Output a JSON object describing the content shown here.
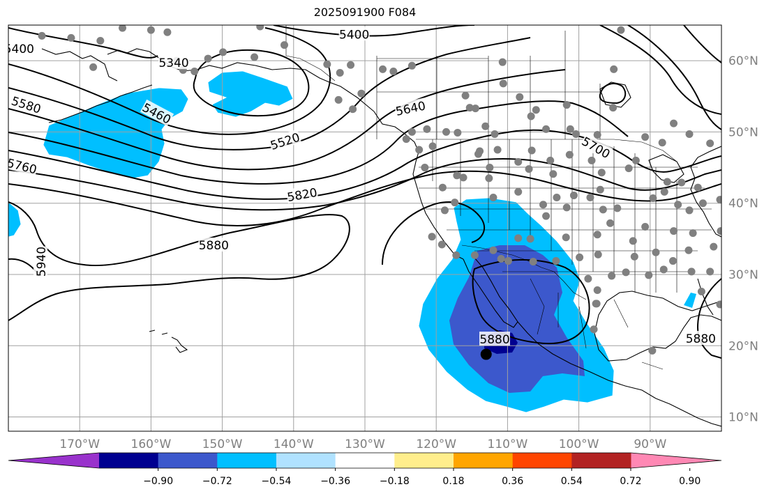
{
  "title": "2025091900 F084",
  "map": {
    "projection": "PlateCarree",
    "lon_range": [
      -180,
      -80
    ],
    "lat_range": [
      8,
      65
    ],
    "grid": true,
    "lon_ticks": [
      {
        "lon": -170,
        "label": "170°W"
      },
      {
        "lon": -160,
        "label": "160°W"
      },
      {
        "lon": -150,
        "label": "150°W"
      },
      {
        "lon": -140,
        "label": "140°W"
      },
      {
        "lon": -130,
        "label": "130°W"
      },
      {
        "lon": -120,
        "label": "120°W"
      },
      {
        "lon": -110,
        "label": "110°W"
      },
      {
        "lon": -100,
        "label": "100°W"
      },
      {
        "lon": -90,
        "label": "90°W"
      }
    ],
    "lat_ticks": [
      {
        "lat": 10,
        "label": "10°N"
      },
      {
        "lat": 20,
        "label": "20°N"
      },
      {
        "lat": 30,
        "label": "30°N"
      },
      {
        "lat": 40,
        "label": "40°N"
      },
      {
        "lat": 50,
        "label": "50°N"
      },
      {
        "lat": 60,
        "label": "60°N"
      }
    ],
    "contour_labels": [
      {
        "text": "5400",
        "lon": -178.5,
        "lat": 61.7
      },
      {
        "text": "5400",
        "lon": -131.5,
        "lat": 63.7
      },
      {
        "text": "5340",
        "lon": -156.8,
        "lat": 59.7
      },
      {
        "text": "5460",
        "lon": -159.2,
        "lat": 52.6
      },
      {
        "text": "5520",
        "lon": -141.2,
        "lat": 48.7
      },
      {
        "text": "5580",
        "lon": -177.5,
        "lat": 53.8
      },
      {
        "text": "5640",
        "lon": -123.6,
        "lat": 53.3
      },
      {
        "text": "5700",
        "lon": -97.6,
        "lat": 47.8
      },
      {
        "text": "5760",
        "lon": -178.1,
        "lat": 45.2
      },
      {
        "text": "5820",
        "lon": -138.8,
        "lat": 41.2
      },
      {
        "text": "5880",
        "lon": -151.2,
        "lat": 34.1
      },
      {
        "text": "5880",
        "lon": -111.8,
        "lat": 20.9
      },
      {
        "text": "5880",
        "lon": -82.9,
        "lat": 21.0
      },
      {
        "text": "5940",
        "lon": -175.4,
        "lat": 31.8
      }
    ],
    "center_marker": {
      "lon": -113.0,
      "lat": 18.8,
      "color": "#000000"
    },
    "station_dot_color": "#808080",
    "stations": [
      [
        -175.3,
        63.5
      ],
      [
        -171.2,
        63.2
      ],
      [
        -168.1,
        59.1
      ],
      [
        -167.1,
        62.8
      ],
      [
        -164.0,
        64.6
      ],
      [
        -160.0,
        64.3
      ],
      [
        -157.7,
        64.0
      ],
      [
        -156.4,
        60.0
      ],
      [
        -155.5,
        58.7
      ],
      [
        -153.9,
        58.5
      ],
      [
        -152.0,
        60.3
      ],
      [
        -149.9,
        61.2
      ],
      [
        -145.5,
        60.5
      ],
      [
        -141.3,
        62.2
      ],
      [
        -144.7,
        64.8
      ],
      [
        -135.3,
        59.5
      ],
      [
        -133.5,
        58.3
      ],
      [
        -132.0,
        59.4
      ],
      [
        -130.5,
        55.4
      ],
      [
        -133.7,
        54.5
      ],
      [
        -131.7,
        53.2
      ],
      [
        -127.5,
        58.8
      ],
      [
        -126.0,
        58.5
      ],
      [
        -123.4,
        59.3
      ],
      [
        -123.4,
        50.0
      ],
      [
        -122.4,
        47.5
      ],
      [
        -124.2,
        49.0
      ],
      [
        -121.3,
        50.4
      ],
      [
        -121.6,
        45.0
      ],
      [
        -120.5,
        48.0
      ],
      [
        -118.6,
        50.0
      ],
      [
        -117.0,
        49.9
      ],
      [
        -115.9,
        55.1
      ],
      [
        -115.3,
        53.4
      ],
      [
        -114.5,
        53.3
      ],
      [
        -113.1,
        50.8
      ],
      [
        -111.8,
        49.7
      ],
      [
        -113.9,
        47.3
      ],
      [
        -110.7,
        59.8
      ],
      [
        -110.6,
        56.8
      ],
      [
        -108.3,
        54.9
      ],
      [
        -106.7,
        52.2
      ],
      [
        -106.0,
        53.1
      ],
      [
        -104.6,
        50.4
      ],
      [
        -101.7,
        53.8
      ],
      [
        -101.2,
        50.4
      ],
      [
        -100.4,
        49.7
      ],
      [
        -97.4,
        49.6
      ],
      [
        -95.2,
        53.4
      ],
      [
        -95.1,
        58.8
      ],
      [
        -94.1,
        64.3
      ],
      [
        -90.7,
        49.3
      ],
      [
        -92.0,
        46.0
      ],
      [
        -88.3,
        48.5
      ],
      [
        -86.7,
        51.2
      ],
      [
        -84.5,
        49.7
      ],
      [
        -81.6,
        48.4
      ],
      [
        -78.3,
        52.2
      ],
      [
        -79.4,
        46.2
      ],
      [
        -77.9,
        64.5
      ],
      [
        -76.8,
        57.2
      ],
      [
        -75.5,
        51.4
      ],
      [
        -73.5,
        45.5
      ],
      [
        -73.2,
        40.9
      ],
      [
        -73.8,
        43.0
      ],
      [
        -76.6,
        44.3
      ],
      [
        -70.5,
        44.7
      ],
      [
        -75.3,
        39.9
      ],
      [
        -78.2,
        38.8
      ],
      [
        -80.1,
        36.1
      ],
      [
        -81.1,
        33.9
      ],
      [
        -84.6,
        33.4
      ],
      [
        -81.6,
        30.4
      ],
      [
        -82.8,
        27.6
      ],
      [
        -80.2,
        25.8
      ],
      [
        -84.2,
        30.4
      ],
      [
        -86.8,
        31.9
      ],
      [
        -88.1,
        30.7
      ],
      [
        -89.2,
        33.1
      ],
      [
        -92.2,
        32.5
      ],
      [
        -90.2,
        29.9
      ],
      [
        -93.4,
        30.3
      ],
      [
        -95.4,
        29.8
      ],
      [
        -97.4,
        27.8
      ],
      [
        -97.6,
        25.9
      ],
      [
        -98.7,
        29.4
      ],
      [
        -97.3,
        32.8
      ],
      [
        -99.9,
        32.4
      ],
      [
        -101.8,
        35.2
      ],
      [
        -103.2,
        31.9
      ],
      [
        -106.4,
        31.8
      ],
      [
        -109.9,
        31.9
      ],
      [
        -110.9,
        32.2
      ],
      [
        -112.0,
        33.4
      ],
      [
        -114.6,
        32.7
      ],
      [
        -117.2,
        32.7
      ],
      [
        -119.2,
        34.2
      ],
      [
        -120.6,
        35.3
      ],
      [
        -118.8,
        39.0
      ],
      [
        -117.4,
        40.1
      ],
      [
        -119.1,
        42.2
      ],
      [
        -117.1,
        43.9
      ],
      [
        -116.2,
        43.6
      ],
      [
        -112.6,
        43.5
      ],
      [
        -112.0,
        40.8
      ],
      [
        -108.5,
        41.6
      ],
      [
        -105.0,
        39.8
      ],
      [
        -103.1,
        40.8
      ],
      [
        -101.7,
        39.4
      ],
      [
        -100.7,
        41.1
      ],
      [
        -97.0,
        41.9
      ],
      [
        -96.6,
        39.1
      ],
      [
        -95.6,
        37.2
      ],
      [
        -94.6,
        39.3
      ],
      [
        -97.4,
        35.6
      ],
      [
        -92.4,
        34.7
      ],
      [
        -90.7,
        36.7
      ],
      [
        -89.6,
        40.7
      ],
      [
        -88.0,
        41.6
      ],
      [
        -87.6,
        43.0
      ],
      [
        -85.6,
        42.9
      ],
      [
        -83.3,
        42.2
      ],
      [
        -86.1,
        39.8
      ],
      [
        -84.5,
        39.0
      ],
      [
        -82.6,
        40.0
      ],
      [
        -80.2,
        40.5
      ],
      [
        -86.7,
        36.1
      ],
      [
        -84.0,
        35.8
      ],
      [
        -93.0,
        44.9
      ],
      [
        -96.8,
        44.3
      ],
      [
        -98.2,
        46.0
      ],
      [
        -101.3,
        46.8
      ],
      [
        -104.0,
        46.0
      ],
      [
        -106.6,
        47.4
      ],
      [
        -108.5,
        45.8
      ],
      [
        -111.4,
        47.5
      ],
      [
        -114.1,
        46.9
      ],
      [
        -112.5,
        45.0
      ],
      [
        -103.6,
        44.1
      ],
      [
        -107.0,
        44.8
      ],
      [
        -98.4,
        40.8
      ],
      [
        -104.6,
        38.2
      ],
      [
        -106.8,
        35.0
      ],
      [
        -108.5,
        35.1
      ],
      [
        -97.5,
        25.9
      ],
      [
        -97.9,
        22.3
      ],
      [
        -89.7,
        19.3
      ],
      [
        -75.4,
        34.5
      ],
      [
        -73.8,
        36.9
      ],
      [
        -70.6,
        41.0
      ],
      [
        -68.4,
        44.1
      ],
      [
        -69.7,
        53.8
      ],
      [
        -66.6,
        45.9
      ]
    ]
  },
  "colorbar": {
    "orientation": "horizontal",
    "extend": "both",
    "ticks": [
      -0.9,
      -0.72,
      -0.54,
      -0.36,
      -0.18,
      0.18,
      0.36,
      0.54,
      0.72,
      0.9
    ],
    "tick_labels": [
      "−0.90",
      "−0.72",
      "−0.54",
      "−0.36",
      "−0.18",
      "0.18",
      "0.36",
      "0.54",
      "0.72",
      "0.90"
    ],
    "under_color": "#9932cc",
    "over_color": "#ff88b4",
    "bins": [
      {
        "from": -0.9,
        "to": -0.72,
        "color": "#000090"
      },
      {
        "from": -0.72,
        "to": -0.54,
        "color": "#3c58cc"
      },
      {
        "from": -0.54,
        "to": -0.36,
        "color": "#00bfff"
      },
      {
        "from": -0.36,
        "to": -0.18,
        "color": "#b0e2ff"
      },
      {
        "from": -0.18,
        "to": 0.18,
        "color": "#ffffff"
      },
      {
        "from": 0.18,
        "to": 0.36,
        "color": "#ffee8c"
      },
      {
        "from": 0.36,
        "to": 0.54,
        "color": "#ffa500"
      },
      {
        "from": 0.54,
        "to": 0.72,
        "color": "#ff4500"
      },
      {
        "from": 0.72,
        "to": 0.9,
        "color": "#b22222"
      }
    ]
  }
}
